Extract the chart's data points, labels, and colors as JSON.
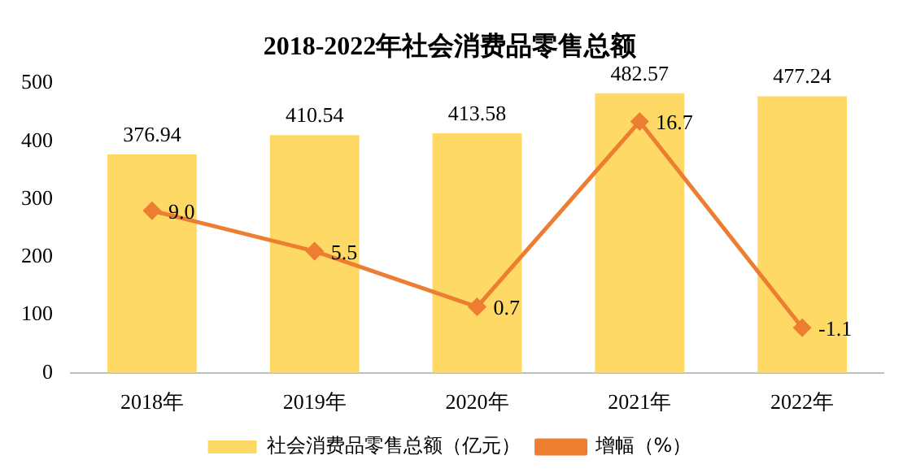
{
  "chart_data": {
    "type": "bar",
    "title": "2018-2022年社会消费品零售总额",
    "categories": [
      "2018年",
      "2019年",
      "2020年",
      "2021年",
      "2022年"
    ],
    "series": [
      {
        "name": "社会消费品零售总额（亿元）",
        "color": "#ffd966",
        "values": [
          376.94,
          410.54,
          413.58,
          482.57,
          477.24
        ],
        "value_labels": [
          "376.94",
          "410.54",
          "413.58",
          "482.57",
          "477.24"
        ]
      },
      {
        "name": "增幅（%）",
        "type": "line",
        "axis": "y2",
        "color": "#ed7d31",
        "values": [
          9.0,
          5.5,
          0.7,
          16.7,
          -1.1
        ],
        "value_labels": [
          "9.0",
          "5.5",
          "0.7",
          "16.7",
          "-1.1"
        ]
      }
    ],
    "ylim": [
      0,
      500
    ],
    "yticks": [
      0,
      100,
      200,
      300,
      400,
      500
    ],
    "grid": false,
    "legend": "bottom",
    "marker": "diamond",
    "line_style": "solid"
  }
}
